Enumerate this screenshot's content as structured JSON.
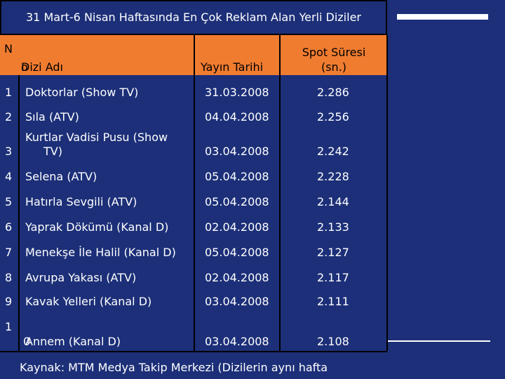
{
  "title": "31 Mart-6 Nisan Haftasında En Çok Reklam Alan Yerli Diziler",
  "headers": {
    "no": "N",
    "no_suffix": "o",
    "name": "Dizi Adı",
    "date": "Yayın Tarihi",
    "spot_line1": "Spot Süresi",
    "spot_line2": "(sn.)"
  },
  "rows": [
    {
      "no": "1",
      "name": "Doktorlar (Show TV)",
      "date": "31.03.2008",
      "spot": "2.286"
    },
    {
      "no": "2",
      "name": "Sıla (ATV)",
      "date": "04.04.2008",
      "spot": "2.256"
    },
    {
      "no": "3",
      "name_line1": "Kurtlar Vadisi Pusu (Show",
      "name_line2": "TV)",
      "date": "03.04.2008",
      "spot": "2.242"
    },
    {
      "no": "4",
      "name": "Selena (ATV)",
      "date": "05.04.2008",
      "spot": "2.228"
    },
    {
      "no": "5",
      "name": "Hatırla Sevgili (ATV)",
      "date": "05.04.2008",
      "spot": "2.144"
    },
    {
      "no": "6",
      "name": "Yaprak Dökümü (Kanal D)",
      "date": "02.04.2008",
      "spot": "2.133"
    },
    {
      "no": "7",
      "name": "Menekşe İle Halil (Kanal D)",
      "date": "05.04.2008",
      "spot": "2.127"
    },
    {
      "no": "8",
      "name": "Avrupa Yakası (ATV)",
      "date": "02.04.2008",
      "spot": "2.117"
    },
    {
      "no": "9",
      "name": "Kavak Yelleri (Kanal D)",
      "date": "03.04.2008",
      "spot": "2.111"
    },
    {
      "no_line1": "1",
      "no_line2": "0",
      "name": "Annem (Kanal D)",
      "date": "03.04.2008",
      "spot": "2.108"
    }
  ],
  "footer": "Kaynak: MTM Medya Takip Merkezi (Dizilerin aynı hafta",
  "colors": {
    "background": "#1c2f78",
    "header": "#f07c30",
    "text": "#ffffff"
  }
}
